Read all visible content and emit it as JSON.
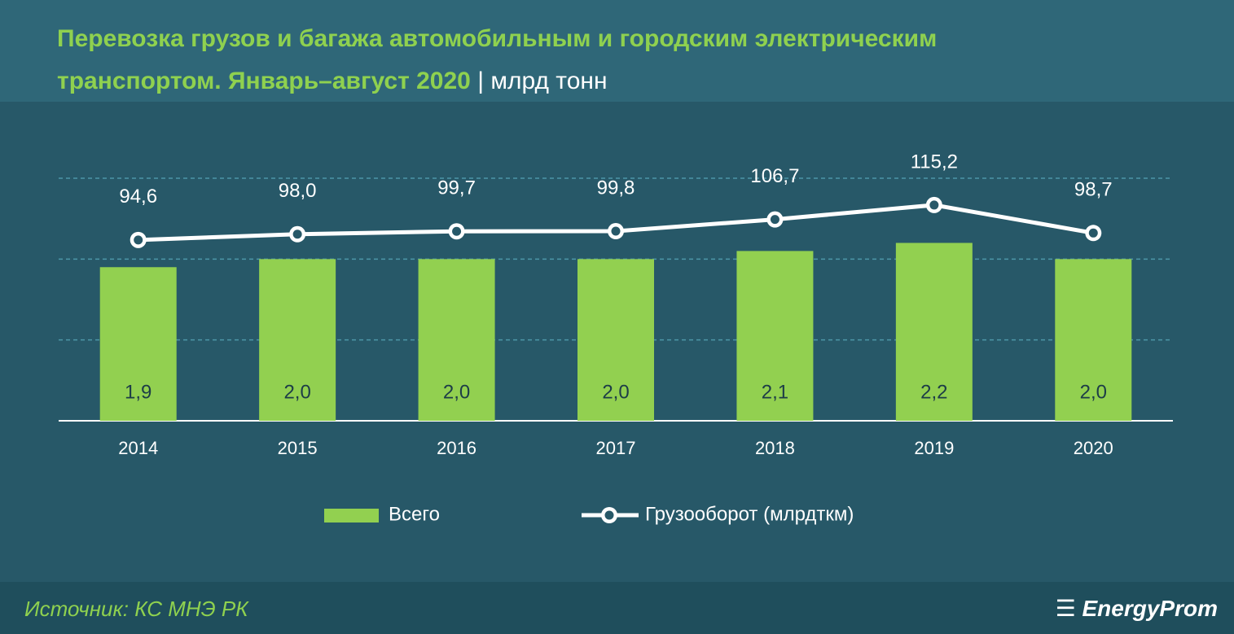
{
  "chart_data": {
    "type": "bar-line",
    "title": "Перевозка грузов и багажа автомобильным и городским электрическим транспортом. Январь–август 2020",
    "subtitle": "| млрд тонн",
    "categories": [
      "2014",
      "2015",
      "2016",
      "2017",
      "2018",
      "2019",
      "2020"
    ],
    "series": [
      {
        "name": "Всего",
        "type": "bar",
        "color": "#92d050",
        "values": [
          1.9,
          2.0,
          2.0,
          2.0,
          2.1,
          2.2,
          2.0
        ],
        "value_labels": [
          "1,9",
          "2,0",
          "2,0",
          "2,0",
          "2,1",
          "2,2",
          "2,0"
        ]
      },
      {
        "name": "Грузооборот (млрдткм)",
        "type": "line",
        "axis": "y2",
        "color": "#ffffff",
        "values": [
          94.6,
          98.0,
          99.7,
          99.8,
          106.7,
          115.2,
          98.7
        ],
        "value_labels": [
          "94,6",
          "98,0",
          "99,7",
          "99,8",
          "106,7",
          "115,2",
          "98,7"
        ]
      }
    ],
    "ylim": [
      0,
      3
    ],
    "yticks": [
      0,
      1,
      2,
      3
    ],
    "y2lim": [
      -12,
      131
    ],
    "grid": true,
    "source": "Источник: КС МНЭ РК",
    "logo": "EnergyProm"
  }
}
